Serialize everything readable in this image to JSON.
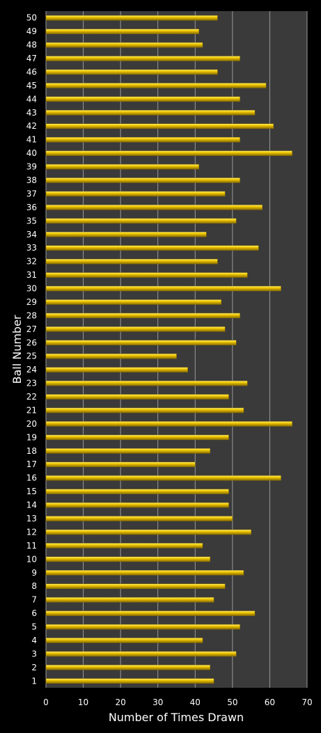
{
  "chart_data": {
    "type": "bar",
    "orientation": "horizontal",
    "title": "",
    "xlabel": "Number of Times Drawn",
    "ylabel": "Ball Number",
    "xlim": [
      0,
      70
    ],
    "xticks": [
      "0",
      "10",
      "20",
      "30",
      "40",
      "50",
      "60",
      "70"
    ],
    "categories": [
      "1",
      "2",
      "3",
      "4",
      "5",
      "6",
      "7",
      "8",
      "9",
      "10",
      "11",
      "12",
      "13",
      "14",
      "15",
      "16",
      "17",
      "18",
      "19",
      "20",
      "21",
      "22",
      "23",
      "24",
      "25",
      "26",
      "27",
      "28",
      "29",
      "30",
      "31",
      "32",
      "33",
      "34",
      "35",
      "36",
      "37",
      "38",
      "39",
      "40",
      "41",
      "42",
      "43",
      "44",
      "45",
      "46",
      "47",
      "48",
      "49",
      "50"
    ],
    "values": [
      45,
      44,
      51,
      42,
      52,
      56,
      45,
      48,
      53,
      44,
      42,
      55,
      50,
      49,
      49,
      63,
      40,
      44,
      49,
      66,
      53,
      49,
      54,
      38,
      35,
      51,
      48,
      52,
      47,
      63,
      54,
      46,
      57,
      43,
      51,
      58,
      48,
      52,
      41,
      66,
      52,
      61,
      56,
      52,
      59,
      46,
      52,
      42,
      41,
      46
    ],
    "grid": "vertical",
    "legend": "none",
    "colors": {
      "background": "#000000",
      "plot_area": "#3a3a3a",
      "bar": "#f0c800",
      "bar_highlight": "#fff27a",
      "bar_shadow": "#8a6d00",
      "gridline": "#9a9a9a",
      "text": "#ffffff"
    }
  }
}
